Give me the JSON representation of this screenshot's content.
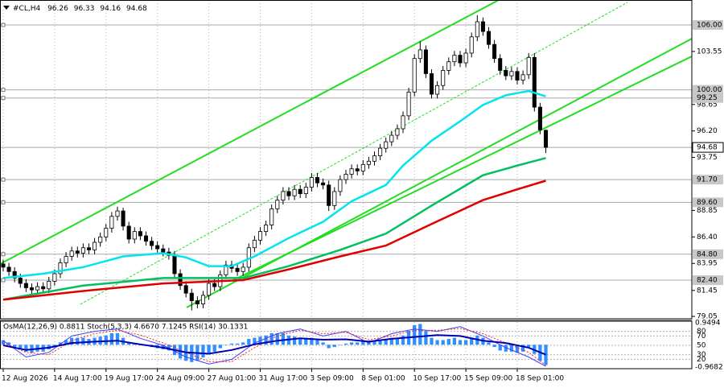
{
  "chart_data": {
    "type": "candlestick",
    "symbol": "#CL,H4",
    "xlim": [
      -0.56,
      120.56
    ],
    "ylim": [
      78.83,
      108.31
    ],
    "xticks": [
      {
        "value": 0,
        "label": "12 Aug 2026"
      },
      {
        "value": 9,
        "label": "14 Aug 17:00"
      },
      {
        "value": 18,
        "label": "19 Aug 17:00"
      },
      {
        "value": 27,
        "label": "24 Aug 09:00"
      },
      {
        "value": 36,
        "label": "27 Aug 01:00"
      },
      {
        "value": 45,
        "label": "31 Aug 17:00"
      },
      {
        "value": 54,
        "label": "3 Sep 09:00"
      },
      {
        "value": 63,
        "label": "8 Sep 01:00"
      },
      {
        "value": 72,
        "label": "10 Sep 17:00"
      },
      {
        "value": 81,
        "label": "15 Sep 09:00"
      },
      {
        "value": 90,
        "label": "18 Sep 01:00"
      }
    ],
    "yticks": [
      103.55,
      98.65,
      {
        "value": 96.2,
        "label": "96.20"
      },
      93.75,
      88.85,
      {
        "value": 86.4,
        "label": "86.40"
      },
      83.95,
      81.45,
      79.05
    ],
    "levels": [
      {
        "value": 106,
        "label": "106.00"
      },
      {
        "value": 100,
        "label": "100.00"
      },
      99.25,
      {
        "value": 91.7,
        "label": "91.70"
      },
      {
        "value": 89.6,
        "label": "89.60"
      },
      {
        "value": 84.8,
        "label": "84.80"
      },
      {
        "value": 82.4,
        "label": "82.40"
      }
    ],
    "grid": true,
    "up_color": "#ffffff",
    "down_color": "#000000",
    "open": [
      83.9,
      83.6,
      83.2,
      82.6,
      82.1,
      81.7,
      81.5,
      81.8,
      81.6,
      82.3,
      83.0,
      84.0,
      84.6,
      85.1,
      84.9,
      85.4,
      85.2,
      85.9,
      86.4,
      87.2,
      88.3,
      88.8,
      87.4,
      86.2,
      86.9,
      86.5,
      86.0,
      85.6,
      85.3,
      85.0,
      84.7,
      83.0,
      81.9,
      81.2,
      80.5,
      80.2,
      81.0,
      82.1,
      81.8,
      82.9,
      83.8,
      83.5,
      83.2,
      83.6,
      85.4,
      86.1,
      86.9,
      87.5,
      89.0,
      89.8,
      90.6,
      90.2,
      90.8,
      90.4,
      91.0,
      91.9,
      91.4,
      91.2,
      89.3,
      90.6,
      91.7,
      92.2,
      92.7,
      92.5,
      93.1,
      93.4,
      93.9,
      94.6,
      95.2,
      95.8,
      96.4,
      97.6,
      99.8,
      102.9,
      103.7,
      101.5,
      99.6,
      100.4,
      101.8,
      102.6,
      103.2,
      102.5,
      103.4,
      104.9,
      106.3,
      105.4,
      104.2,
      102.9,
      101.8,
      101.3,
      101.7,
      100.9,
      101.4,
      103.0,
      98.4,
      96.26
    ],
    "high": [
      84.3,
      84.0,
      83.6,
      83.0,
      82.5,
      82.1,
      82.2,
      82.2,
      82.7,
      83.4,
      84.4,
      85.0,
      85.5,
      85.5,
      85.8,
      85.8,
      86.3,
      86.8,
      87.6,
      88.7,
      89.2,
      89.1,
      87.8,
      87.3,
      87.3,
      86.9,
      86.4,
      86.0,
      85.7,
      85.4,
      85.1,
      83.4,
      82.3,
      81.6,
      80.9,
      81.4,
      82.5,
      82.5,
      83.3,
      84.2,
      84.2,
      83.9,
      84.0,
      85.8,
      86.5,
      87.3,
      87.9,
      89.4,
      90.2,
      91.0,
      91.0,
      91.2,
      91.2,
      91.4,
      92.3,
      92.3,
      91.8,
      91.6,
      91.0,
      92.1,
      92.6,
      93.1,
      93.1,
      93.5,
      93.8,
      94.3,
      95.0,
      95.6,
      96.2,
      96.8,
      98.0,
      100.2,
      103.3,
      104.5,
      104.1,
      101.9,
      100.8,
      102.2,
      103.0,
      103.6,
      103.6,
      103.8,
      105.3,
      106.9,
      106.7,
      105.8,
      104.6,
      103.3,
      102.2,
      102.1,
      102.1,
      101.8,
      103.4,
      103.4,
      98.8,
      96.33
    ],
    "low": [
      83.2,
      82.8,
      82.2,
      81.7,
      81.3,
      81.1,
      81.1,
      81.2,
      81.2,
      81.9,
      82.6,
      83.6,
      84.2,
      84.5,
      84.5,
      84.8,
      84.8,
      85.5,
      86.0,
      86.8,
      87.9,
      87.0,
      85.8,
      85.8,
      86.1,
      85.6,
      85.2,
      84.9,
      84.6,
      84.3,
      82.6,
      81.5,
      80.8,
      79.6,
      79.8,
      79.8,
      80.6,
      81.4,
      81.4,
      82.5,
      83.1,
      82.8,
      82.8,
      83.2,
      85.0,
      85.7,
      86.5,
      87.1,
      88.6,
      89.4,
      89.8,
      89.8,
      90.0,
      90.0,
      90.6,
      91.0,
      90.8,
      88.8,
      88.9,
      90.2,
      91.3,
      91.8,
      92.1,
      92.1,
      92.7,
      93.0,
      93.5,
      94.2,
      94.8,
      95.4,
      96.0,
      97.2,
      99.4,
      102.5,
      101.1,
      99.2,
      99.2,
      100.0,
      101.4,
      102.2,
      102.1,
      102.1,
      103.0,
      104.5,
      105.0,
      103.8,
      102.5,
      101.4,
      100.9,
      100.9,
      100.5,
      100.5,
      101.0,
      98.0,
      95.9,
      94.16
    ],
    "close": [
      83.6,
      83.2,
      82.6,
      82.1,
      81.7,
      81.5,
      81.8,
      81.6,
      82.3,
      83.0,
      84.0,
      84.6,
      85.1,
      84.9,
      85.4,
      85.2,
      85.9,
      86.4,
      87.2,
      88.3,
      88.8,
      87.4,
      86.2,
      86.9,
      86.5,
      86.0,
      85.6,
      85.3,
      85.0,
      84.7,
      83.0,
      81.9,
      81.2,
      80.5,
      80.2,
      81.0,
      82.1,
      81.8,
      82.9,
      83.8,
      83.5,
      83.2,
      83.6,
      85.4,
      86.1,
      86.9,
      87.5,
      89.0,
      89.8,
      90.6,
      90.2,
      90.8,
      90.4,
      91.0,
      91.9,
      91.4,
      91.2,
      89.3,
      90.6,
      91.7,
      92.2,
      92.7,
      92.5,
      93.1,
      93.4,
      93.9,
      94.6,
      95.2,
      95.8,
      96.4,
      97.6,
      99.8,
      102.9,
      103.7,
      101.5,
      99.6,
      100.4,
      101.8,
      102.6,
      103.2,
      102.5,
      103.4,
      104.9,
      106.3,
      105.4,
      104.2,
      102.9,
      101.8,
      101.3,
      101.7,
      100.9,
      101.4,
      103.0,
      98.4,
      96.3,
      94.68
    ],
    "moving_averages": [
      {
        "color": "#00e5ee",
        "x": [
          0,
          7,
          14,
          21,
          28,
          32,
          36,
          40,
          44,
          50,
          56,
          61,
          67,
          70,
          75,
          80,
          84,
          88,
          92,
          95
        ],
        "values": [
          82.6,
          83.0,
          83.6,
          84.6,
          84.9,
          84.5,
          83.7,
          83.7,
          84.6,
          86.3,
          87.8,
          89.7,
          91.2,
          93.0,
          95.3,
          97.1,
          98.6,
          99.5,
          99.9,
          99.4
        ]
      },
      {
        "color": "#00c060",
        "x": [
          0,
          14,
          28,
          42,
          50,
          59,
          67,
          75,
          84,
          90,
          95
        ],
        "values": [
          80.6,
          81.9,
          82.6,
          82.6,
          83.7,
          85.2,
          86.7,
          89.3,
          92.1,
          93.0,
          93.7
        ]
      },
      {
        "color": "#e00000",
        "x": [
          0,
          14,
          28,
          42,
          50,
          59,
          67,
          75,
          84,
          90,
          95
        ],
        "values": [
          80.6,
          81.4,
          82.1,
          82.4,
          83.4,
          84.6,
          85.6,
          87.6,
          89.8,
          90.8,
          91.6
        ]
      }
    ],
    "oscillator": {
      "label": "OsMA(12,26,9) 0.8811  Stoch(5,3,3) 4.6670 7.1245  RSI(14) 30.1331",
      "ylim": [
        -0.9682,
        0.9494
      ],
      "yticks": [
        0.9494,
        -0.9682
      ],
      "y2lim": [
        0,
        100
      ],
      "y2ticks": [
        80,
        70,
        50,
        30,
        20
      ],
      "osma_color": "#2f8fff",
      "osma": [
        0.2,
        0.1,
        -0.1,
        -0.2,
        -0.3,
        -0.35,
        -0.3,
        -0.3,
        -0.2,
        -0.1,
        0.1,
        0.2,
        0.3,
        0.3,
        0.3,
        0.25,
        0.3,
        0.35,
        0.4,
        0.5,
        0.5,
        0.3,
        0.1,
        0.05,
        0,
        -0.05,
        -0.1,
        -0.15,
        -0.2,
        -0.25,
        -0.45,
        -0.6,
        -0.7,
        -0.75,
        -0.7,
        -0.55,
        -0.35,
        -0.3,
        -0.15,
        0,
        0.05,
        0.05,
        0.1,
        0.25,
        0.3,
        0.35,
        0.4,
        0.5,
        0.5,
        0.5,
        0.4,
        0.35,
        0.3,
        0.3,
        0.3,
        0.2,
        0.1,
        -0.15,
        -0.1,
        0,
        0.05,
        0.1,
        0.1,
        0.15,
        0.15,
        0.15,
        0.2,
        0.25,
        0.3,
        0.3,
        0.4,
        0.6,
        0.85,
        0.9,
        0.6,
        0.3,
        0.2,
        0.2,
        0.25,
        0.3,
        0.2,
        0.2,
        0.3,
        0.4,
        0.3,
        0.1,
        -0.1,
        -0.25,
        -0.3,
        -0.3,
        -0.35,
        -0.3,
        -0.1,
        -0.4,
        -0.7,
        -0.88
      ],
      "x": [
        0,
        4,
        8,
        12,
        16,
        20,
        24,
        28,
        32,
        36,
        40,
        44,
        48,
        52,
        56,
        60,
        64,
        68,
        72,
        76,
        80,
        84,
        88,
        92,
        95
      ],
      "lines": [
        {
          "color": "#4040ff",
          "width": 1,
          "values": [
            60,
            25,
            35,
            70,
            80,
            85,
            65,
            50,
            25,
            10,
            20,
            55,
            75,
            85,
            70,
            80,
            55,
            75,
            85,
            80,
            90,
            70,
            45,
            25,
            5
          ]
        },
        {
          "color": "#ff2020",
          "width": 1,
          "dash": true,
          "values": [
            55,
            35,
            30,
            60,
            75,
            82,
            72,
            55,
            35,
            15,
            15,
            45,
            70,
            82,
            75,
            78,
            62,
            70,
            82,
            82,
            86,
            75,
            55,
            35,
            7
          ]
        },
        {
          "color": "#0000b0",
          "width": 2,
          "values": [
            50,
            40,
            45,
            55,
            58,
            60,
            52,
            45,
            35,
            32,
            40,
            52,
            60,
            65,
            62,
            63,
            58,
            64,
            68,
            72,
            70,
            60,
            55,
            45,
            30
          ]
        }
      ]
    }
  }
}
